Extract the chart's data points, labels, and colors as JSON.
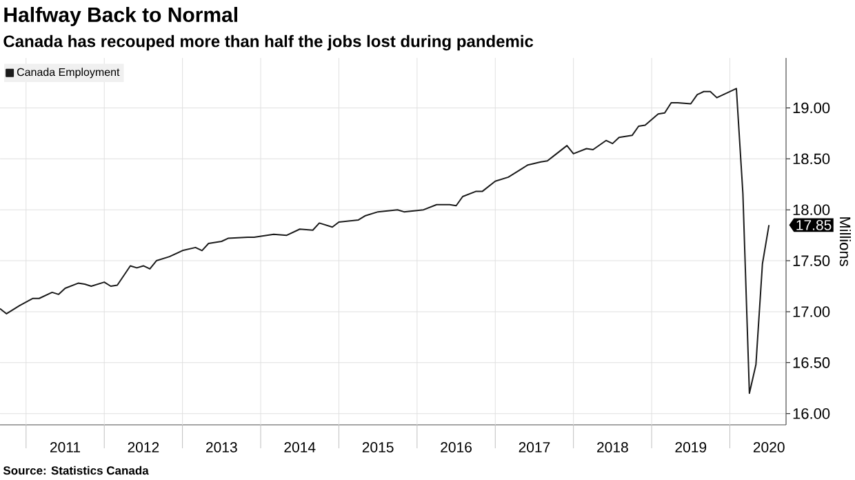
{
  "chart_data": {
    "type": "line",
    "title": "Halfway Back to Normal",
    "subtitle": "Canada has recouped more than half the jobs lost during pandemic",
    "ylabel": "Millions",
    "x": [
      "2010-09",
      "2010-10",
      "2010-12",
      "2011-02",
      "2011-03",
      "2011-05",
      "2011-06",
      "2011-07",
      "2011-09",
      "2011-10",
      "2011-11",
      "2012-01",
      "2012-02",
      "2012-03",
      "2012-05",
      "2012-06",
      "2012-07",
      "2012-08",
      "2012-09",
      "2012-11",
      "2013-01",
      "2013-03",
      "2013-04",
      "2013-05",
      "2013-07",
      "2013-08",
      "2013-11",
      "2013-12",
      "2014-03",
      "2014-05",
      "2014-07",
      "2014-09",
      "2014-10",
      "2014-12",
      "2015-01",
      "2015-04",
      "2015-05",
      "2015-07",
      "2015-10",
      "2015-11",
      "2016-02",
      "2016-04",
      "2016-06",
      "2016-07",
      "2016-08",
      "2016-10",
      "2016-11",
      "2017-01",
      "2017-03",
      "2017-05",
      "2017-06",
      "2017-08",
      "2017-09",
      "2017-10",
      "2017-12",
      "2018-01",
      "2018-03",
      "2018-04",
      "2018-06",
      "2018-07",
      "2018-08",
      "2018-10",
      "2018-11",
      "2018-12",
      "2019-02",
      "2019-03",
      "2019-04",
      "2019-05",
      "2019-07",
      "2019-08",
      "2019-09",
      "2019-10",
      "2019-11",
      "2020-02",
      "2020-03",
      "2020-04",
      "2020-05",
      "2020-06",
      "2020-07"
    ],
    "series": [
      {
        "name": "Canada Employment",
        "color": "#1a1a1a",
        "values": [
          17.03,
          16.98,
          17.06,
          17.13,
          17.13,
          17.19,
          17.17,
          17.23,
          17.28,
          17.27,
          17.25,
          17.29,
          17.25,
          17.26,
          17.45,
          17.43,
          17.45,
          17.42,
          17.5,
          17.54,
          17.6,
          17.63,
          17.6,
          17.67,
          17.69,
          17.72,
          17.73,
          17.73,
          17.76,
          17.75,
          17.81,
          17.8,
          17.87,
          17.83,
          17.88,
          17.9,
          17.94,
          17.98,
          18.0,
          17.98,
          18.0,
          18.05,
          18.05,
          18.04,
          18.13,
          18.18,
          18.18,
          18.28,
          18.32,
          18.4,
          18.44,
          18.47,
          18.48,
          18.53,
          18.63,
          18.55,
          18.6,
          18.59,
          18.68,
          18.65,
          18.71,
          18.73,
          18.82,
          18.83,
          18.94,
          18.95,
          19.05,
          19.05,
          19.04,
          19.13,
          19.16,
          19.16,
          19.1,
          19.19,
          18.16,
          16.2,
          16.48,
          17.47,
          17.85
        ]
      }
    ],
    "xlim": [
      "2010-09",
      "2020-09-20"
    ],
    "ylim": [
      15.89,
      19.49
    ],
    "xticks": [
      {
        "value": "2011-01",
        "label": null
      },
      {
        "value": "2011-07",
        "label": "2011"
      },
      {
        "value": "2012-01",
        "label": null
      },
      {
        "value": "2012-07",
        "label": "2012"
      },
      {
        "value": "2013-01",
        "label": null
      },
      {
        "value": "2013-07",
        "label": "2013"
      },
      {
        "value": "2014-01",
        "label": null
      },
      {
        "value": "2014-07",
        "label": "2014"
      },
      {
        "value": "2015-01",
        "label": null
      },
      {
        "value": "2015-07",
        "label": "2015"
      },
      {
        "value": "2016-01",
        "label": null
      },
      {
        "value": "2016-07",
        "label": "2016"
      },
      {
        "value": "2017-01",
        "label": null
      },
      {
        "value": "2017-07",
        "label": "2017"
      },
      {
        "value": "2018-01",
        "label": null
      },
      {
        "value": "2018-07",
        "label": "2018"
      },
      {
        "value": "2019-01",
        "label": null
      },
      {
        "value": "2019-07",
        "label": "2019"
      },
      {
        "value": "2020-01",
        "label": null
      },
      {
        "value": "2020-07",
        "label": "2020"
      }
    ],
    "yticks": [
      {
        "value": 16,
        "label": "16.00"
      },
      {
        "value": 16.5,
        "label": "16.50"
      },
      {
        "value": 17,
        "label": "17.00"
      },
      {
        "value": 17.5,
        "label": "17.50"
      },
      {
        "value": 18,
        "label": "18.00"
      },
      {
        "value": 18.5,
        "label": "18.50"
      },
      {
        "value": 19,
        "label": "19.00"
      }
    ],
    "grid": true,
    "legend": "top left",
    "annotations": [
      "Source: Statistics Canada",
      {
        "text": "17.85",
        "x": "2020-07",
        "y": 17.85
      }
    ]
  }
}
